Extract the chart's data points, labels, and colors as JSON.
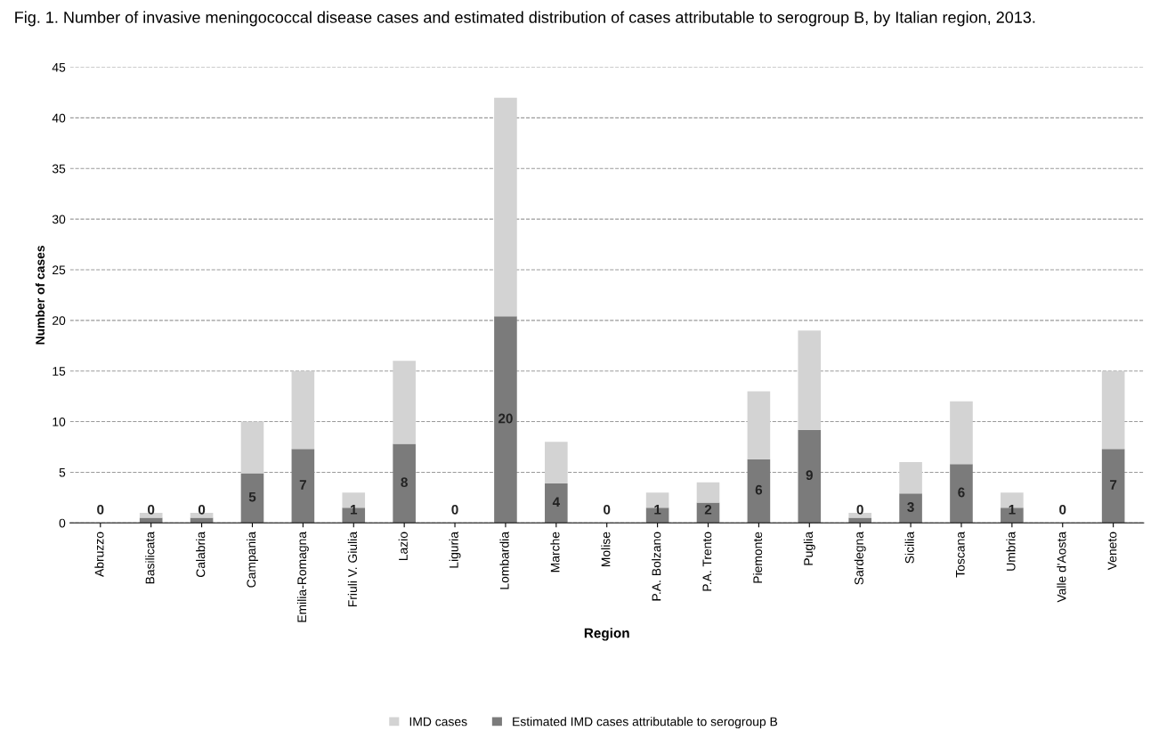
{
  "chart_data": {
    "type": "bar",
    "title": "Fig. 1. Number of invasive meningococcal disease cases and estimated distribution of cases attributable to serogroup B, by Italian region, 2013.",
    "xlabel": "Region",
    "ylabel": "Number of cases",
    "categories": [
      "Abruzzo",
      "Basilicata",
      "Calabria",
      "Campania",
      "Emilia-Romagna",
      "Friuli V. Giulia",
      "Lazio",
      "Liguria",
      "Lombardia",
      "Marche",
      "Molise",
      "P.A. Bolzano",
      "P.A. Trento",
      "Piemonte",
      "Puglia",
      "Sardegna",
      "Sicilia",
      "Toscana",
      "Umbria",
      "Valle d'Aosta",
      "Veneto"
    ],
    "stacked": true,
    "series": [
      {
        "name": "Estimated IMD cases attributable to serogroup B",
        "color": "#7b7b7b",
        "values": [
          0,
          0.5,
          0.5,
          4.9,
          7.3,
          1.5,
          7.8,
          0,
          20.4,
          3.9,
          0,
          1.5,
          2.0,
          6.3,
          9.2,
          0.5,
          2.9,
          5.8,
          1.5,
          0,
          7.3
        ],
        "value_labels": [
          "0",
          "0",
          "0",
          "5",
          "7",
          "1",
          "8",
          "0",
          "20",
          "4",
          "0",
          "1",
          "2",
          "6",
          "9",
          "0",
          "3",
          "6",
          "1",
          "0",
          "7"
        ]
      },
      {
        "name": "IMD cases",
        "color": "#d3d3d3",
        "values": [
          0,
          0.5,
          0.5,
          5.1,
          7.7,
          1.5,
          8.2,
          0,
          21.6,
          4.1,
          0,
          1.5,
          2.0,
          6.7,
          9.8,
          0.5,
          3.1,
          6.2,
          1.5,
          0,
          7.7
        ]
      }
    ],
    "ylim": [
      0,
      45
    ],
    "yticks": [
      0,
      5,
      10,
      15,
      20,
      25,
      30,
      35,
      40,
      45
    ],
    "grid": "y",
    "line_style": "dashed",
    "legend": "bottom"
  }
}
